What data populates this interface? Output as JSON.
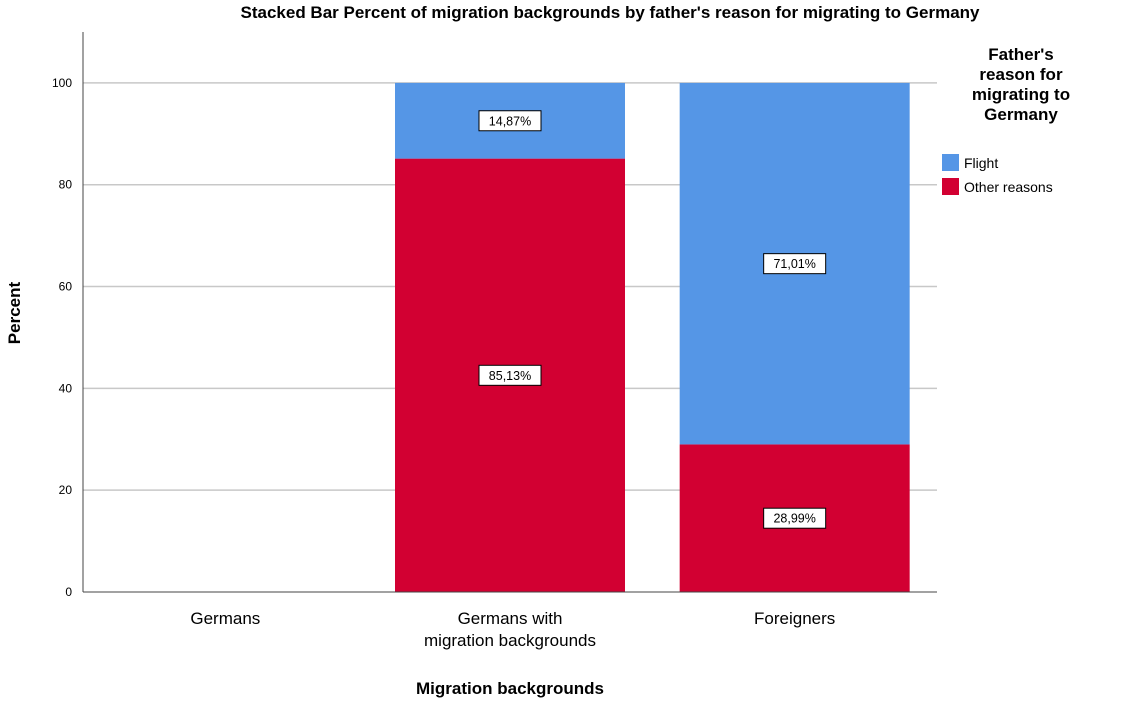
{
  "chart_data": {
    "type": "bar",
    "stacked": true,
    "title": "Stacked Bar Percent of migration backgrounds by father's reason for migrating to Germany",
    "xlabel": "Migration backgrounds",
    "ylabel": "Percent",
    "ylim": [
      0,
      110
    ],
    "yticks": [
      0,
      20,
      40,
      60,
      80,
      100
    ],
    "grid": true,
    "legend_title": [
      "Father's",
      "reason for",
      "migrating to",
      "Germany"
    ],
    "legend_position": "right",
    "categories": [
      [
        "Germans"
      ],
      [
        "Germans with",
        "migration backgrounds"
      ],
      [
        "Foreigners"
      ]
    ],
    "series": [
      {
        "name": "Other reasons",
        "color": "#d20032",
        "values": [
          0,
          85.13,
          28.99
        ],
        "labels": [
          "",
          "85,13%",
          "28,99%"
        ]
      },
      {
        "name": "Flight",
        "color": "#5596e6",
        "values": [
          0,
          14.87,
          71.01
        ],
        "labels": [
          "",
          "14,87%",
          "71,01%"
        ]
      }
    ],
    "legend_order": [
      1,
      0
    ]
  }
}
